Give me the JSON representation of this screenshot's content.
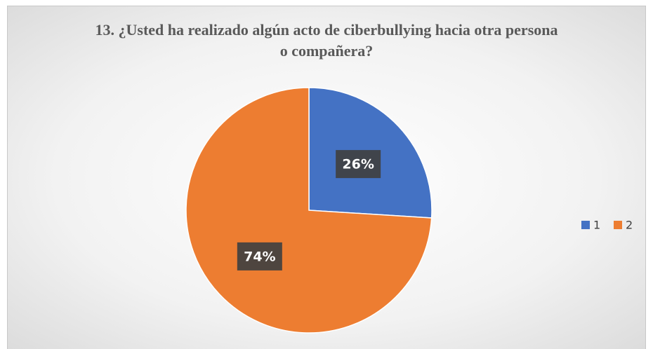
{
  "chart_data": {
    "type": "pie",
    "title": "13. ¿Usted ha realizado algún acto de ciberbullying hacia otra persona o compañera?",
    "categories": [
      "1",
      "2"
    ],
    "values": [
      26,
      74
    ],
    "value_labels": [
      "26%",
      "74%"
    ],
    "colors": [
      "#4472c4",
      "#ed7d31"
    ],
    "legend": "right"
  }
}
